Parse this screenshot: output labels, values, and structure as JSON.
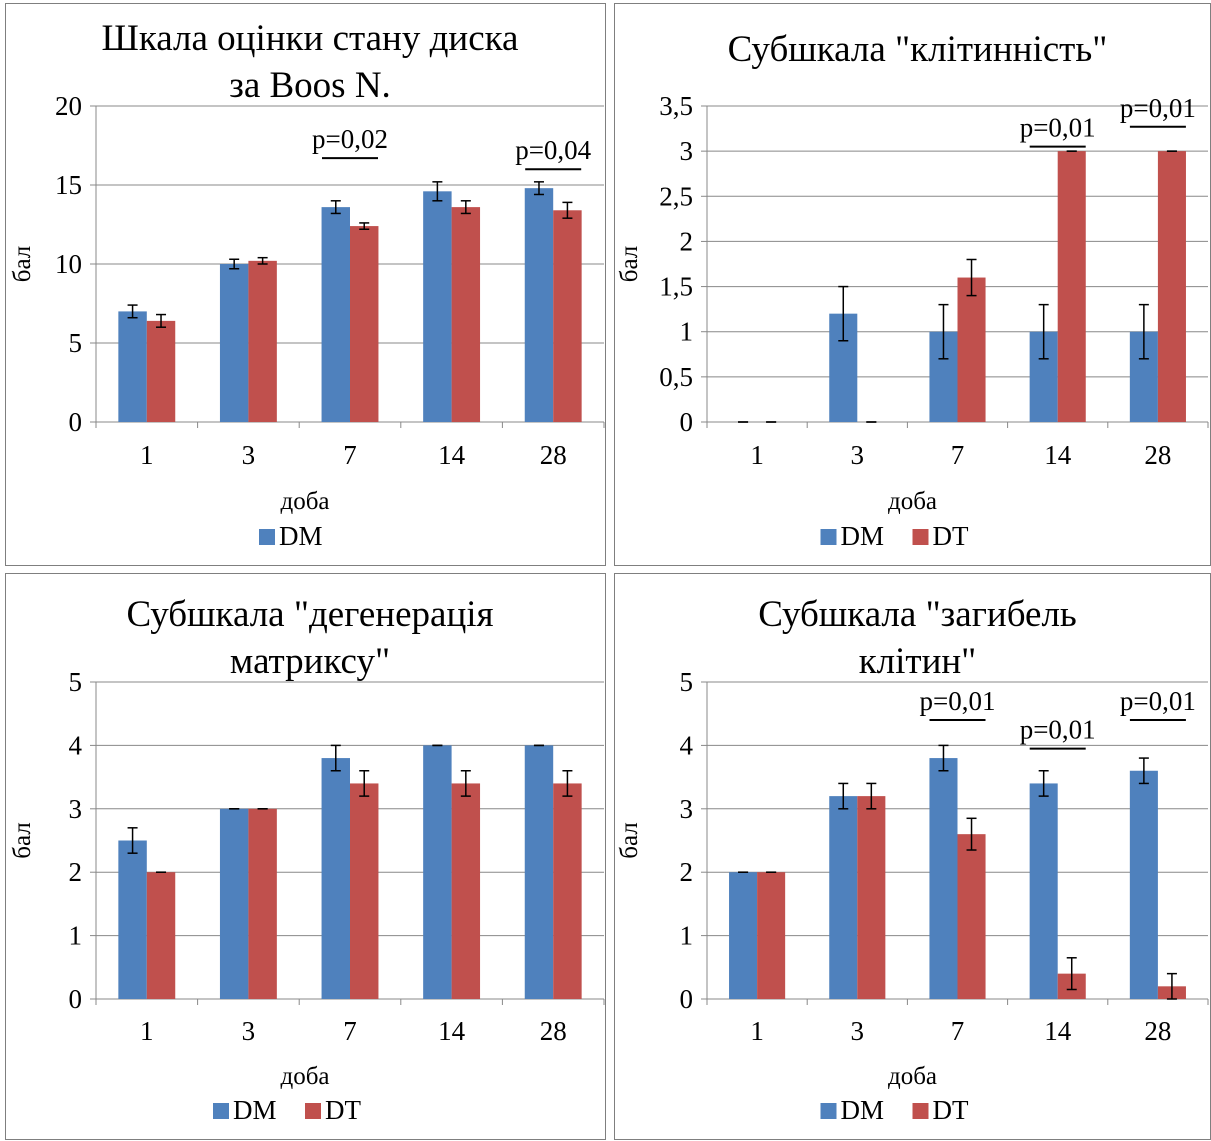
{
  "colors": {
    "DM": "#4F81BD",
    "DT": "#C0504D",
    "grid": "#888888",
    "axis": "#888888"
  },
  "chart_data": [
    {
      "type": "bar",
      "title": [
        "Шкала оцінки стану диска",
        "за Boos N."
      ],
      "xlabel": "доба",
      "ylabel": "бал",
      "categories": [
        "1",
        "3",
        "7",
        "14",
        "28"
      ],
      "ylim": [
        0,
        20
      ],
      "yticks": [
        "0",
        "5",
        "10",
        "15",
        "20"
      ],
      "ytick_values": [
        0,
        5,
        10,
        15,
        20
      ],
      "grid": true,
      "legend": [
        "DM"
      ],
      "legend_position": "bottom",
      "series": [
        {
          "name": "DM",
          "values": [
            7.0,
            10.0,
            13.6,
            14.6,
            14.8
          ],
          "errors": [
            0.4,
            0.3,
            0.4,
            0.6,
            0.4
          ]
        },
        {
          "name": "DT",
          "values": [
            6.4,
            10.2,
            12.4,
            13.6,
            13.4
          ],
          "errors": [
            0.4,
            0.2,
            0.2,
            0.4,
            0.5
          ]
        }
      ],
      "annotations": [
        {
          "text": "p=0,02",
          "category": 2,
          "y": 16.7
        },
        {
          "text": "p=0,04",
          "category": 4,
          "y": 16.0
        }
      ]
    },
    {
      "type": "bar",
      "title": [
        "Субшкала \"клітинність\""
      ],
      "xlabel": "доба",
      "ylabel": "бал",
      "categories": [
        "1",
        "3",
        "7",
        "14",
        "28"
      ],
      "ylim": [
        0,
        3.5
      ],
      "yticks": [
        "0",
        "0,5",
        "1",
        "1,5",
        "2",
        "2,5",
        "3",
        "3,5"
      ],
      "ytick_values": [
        0,
        0.5,
        1,
        1.5,
        2,
        2.5,
        3,
        3.5
      ],
      "grid": true,
      "legend": [
        "DM",
        "DT"
      ],
      "legend_position": "bottom",
      "series": [
        {
          "name": "DM",
          "values": [
            0,
            1.2,
            1.0,
            1.0,
            1.0
          ],
          "errors": [
            0,
            0.3,
            0.3,
            0.3,
            0.3
          ]
        },
        {
          "name": "DT",
          "values": [
            0,
            0,
            1.6,
            3.0,
            3.0
          ],
          "errors": [
            0,
            0,
            0.2,
            0,
            0
          ]
        }
      ],
      "annotations": [
        {
          "text": "p=0,01",
          "category": 3,
          "y": 3.05
        },
        {
          "text": "p=0,01",
          "category": 4,
          "y": 3.27
        }
      ]
    },
    {
      "type": "bar",
      "title": [
        "Субшкала \"дегенерація",
        "матриксу\""
      ],
      "xlabel": "доба",
      "ylabel": "бал",
      "categories": [
        "1",
        "3",
        "7",
        "14",
        "28"
      ],
      "ylim": [
        0,
        5
      ],
      "yticks": [
        "0",
        "1",
        "2",
        "3",
        "4",
        "5"
      ],
      "ytick_values": [
        0,
        1,
        2,
        3,
        4,
        5
      ],
      "grid": true,
      "legend": [
        "DM",
        "DT"
      ],
      "legend_position": "bottom",
      "series": [
        {
          "name": "DM",
          "values": [
            2.5,
            3.0,
            3.8,
            4.0,
            4.0
          ],
          "errors": [
            0.2,
            0,
            0.2,
            0,
            0
          ]
        },
        {
          "name": "DT",
          "values": [
            2.0,
            3.0,
            3.4,
            3.4,
            3.4
          ],
          "errors": [
            0,
            0,
            0.2,
            0.2,
            0.2
          ]
        }
      ],
      "annotations": []
    },
    {
      "type": "bar",
      "title": [
        "Субшкала \"загибель",
        "клітин\""
      ],
      "xlabel": "доба",
      "ylabel": "бал",
      "categories": [
        "1",
        "3",
        "7",
        "14",
        "28"
      ],
      "ylim": [
        0,
        5
      ],
      "yticks": [
        "0",
        "1",
        "2",
        "3",
        "4",
        "5"
      ],
      "ytick_values": [
        0,
        1,
        2,
        3,
        4,
        5
      ],
      "grid": true,
      "legend": [
        "DM",
        "DT"
      ],
      "legend_position": "bottom",
      "series": [
        {
          "name": "DM",
          "values": [
            2.0,
            3.2,
            3.8,
            3.4,
            3.6
          ],
          "errors": [
            0,
            0.2,
            0.2,
            0.2,
            0.2
          ]
        },
        {
          "name": "DT",
          "values": [
            2.0,
            3.2,
            2.6,
            0.4,
            0.2
          ],
          "errors": [
            0,
            0.2,
            0.25,
            0.25,
            0.2
          ]
        }
      ],
      "annotations": [
        {
          "text": "p=0,01",
          "category": 2,
          "y": 4.4
        },
        {
          "text": "p=0,01",
          "category": 3,
          "y": 3.95
        },
        {
          "text": "p=0,01",
          "category": 4,
          "y": 4.4
        }
      ]
    }
  ]
}
